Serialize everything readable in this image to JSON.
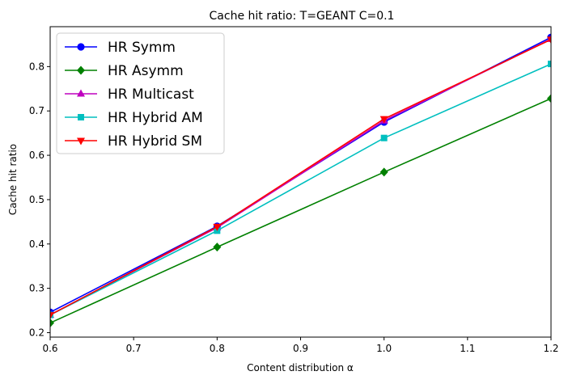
{
  "chart_data": {
    "type": "line",
    "title": "Cache hit ratio: T=GEANT C=0.1",
    "xlabel": "Content distribution α",
    "ylabel": "Cache hit ratio",
    "xlim": [
      0.6,
      1.2
    ],
    "ylim": [
      0.19,
      0.89
    ],
    "xticks": [
      "0.6",
      "0.7",
      "0.8",
      "0.9",
      "1.0",
      "1.1",
      "1.2"
    ],
    "yticks": [
      "0.2",
      "0.3",
      "0.4",
      "0.5",
      "0.6",
      "0.7",
      "0.8"
    ],
    "grid": false,
    "legend_position": "top-left",
    "x": [
      0.6,
      0.8,
      1.0,
      1.2
    ],
    "series": [
      {
        "name": "HR Symm",
        "values": [
          0.246,
          0.44,
          0.675,
          0.866
        ],
        "color": "#0000ff",
        "marker": "circle"
      },
      {
        "name": "HR Asymm",
        "values": [
          0.222,
          0.393,
          0.562,
          0.728
        ],
        "color": "#008000",
        "marker": "diamond"
      },
      {
        "name": "HR Multicast",
        "values": [
          0.24,
          0.437,
          0.678,
          0.862
        ],
        "color": "#bf00bf",
        "marker": "triangle-up"
      },
      {
        "name": "HR Hybrid AM",
        "values": [
          0.24,
          0.43,
          0.639,
          0.806
        ],
        "color": "#00bfbf",
        "marker": "square"
      },
      {
        "name": "HR Hybrid SM",
        "values": [
          0.24,
          0.439,
          0.682,
          0.861
        ],
        "color": "#ff0000",
        "marker": "triangle-down"
      }
    ]
  }
}
